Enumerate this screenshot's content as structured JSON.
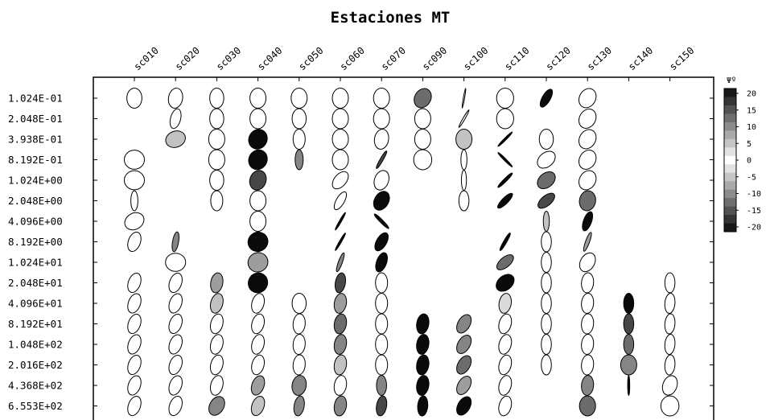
{
  "chart_data": {
    "type": "scatter",
    "title": "Estaciones MT",
    "xlabel": "",
    "ylabel": "",
    "stations": [
      "sc010",
      "sc020",
      "sc030",
      "sc040",
      "sc050",
      "sc060",
      "sc070",
      "sc090",
      "sc100",
      "sc110",
      "sc120",
      "sc130",
      "sc140",
      "sc150"
    ],
    "periods": [
      "1.024E-01",
      "2.048E-01",
      "3.938E-01",
      "8.192E-01",
      "1.024E+00",
      "2.048E+00",
      "4.096E+00",
      "8.192E+00",
      "1.024E+01",
      "2.048E+01",
      "4.096E+01",
      "8.192E+01",
      "1.048E+02",
      "2.016E+02",
      "4.368E+02",
      "6.553E+02"
    ],
    "legend": {
      "title": "Ψº",
      "ticks": [
        "20",
        "15",
        "10",
        "5",
        "0",
        "-5",
        "-10",
        "-15",
        "-20"
      ],
      "range": [
        -20,
        20
      ]
    },
    "ellipse_fields": [
      "station",
      "period_index",
      "skew",
      "axis_ratio",
      "angle_deg"
    ],
    "ellipses": [
      [
        "sc010",
        0,
        0,
        0.75,
        90
      ],
      [
        "sc010",
        3,
        0,
        0.95,
        0
      ],
      [
        "sc010",
        4,
        0,
        0.95,
        0
      ],
      [
        "sc010",
        5,
        0,
        0.35,
        90
      ],
      [
        "sc010",
        6,
        0,
        0.8,
        30
      ],
      [
        "sc010",
        7,
        0,
        0.6,
        70
      ],
      [
        "sc010",
        9,
        0,
        0.6,
        70
      ],
      [
        "sc010",
        10,
        0,
        0.6,
        70
      ],
      [
        "sc010",
        11,
        0,
        0.6,
        70
      ],
      [
        "sc010",
        12,
        0,
        0.6,
        70
      ],
      [
        "sc010",
        13,
        0,
        0.6,
        70
      ],
      [
        "sc010",
        14,
        0,
        0.6,
        70
      ],
      [
        "sc010",
        15,
        0,
        0.6,
        70
      ],
      [
        "sc020",
        0,
        0,
        0.7,
        80
      ],
      [
        "sc020",
        1,
        0,
        0.5,
        75
      ],
      [
        "sc020",
        2,
        5,
        0.8,
        20
      ],
      [
        "sc020",
        7,
        -10,
        0.3,
        80
      ],
      [
        "sc020",
        8,
        0,
        0.9,
        0
      ],
      [
        "sc020",
        9,
        0,
        0.6,
        70
      ],
      [
        "sc020",
        10,
        0,
        0.6,
        70
      ],
      [
        "sc020",
        11,
        0,
        0.6,
        70
      ],
      [
        "sc020",
        12,
        0,
        0.6,
        70
      ],
      [
        "sc020",
        13,
        0,
        0.6,
        70
      ],
      [
        "sc020",
        14,
        0,
        0.6,
        70
      ],
      [
        "sc020",
        15,
        0,
        0.6,
        70
      ],
      [
        "sc030",
        0,
        0,
        0.7,
        90
      ],
      [
        "sc030",
        1,
        0,
        0.7,
        90
      ],
      [
        "sc030",
        2,
        0,
        0.8,
        90
      ],
      [
        "sc030",
        3,
        0,
        0.8,
        90
      ],
      [
        "sc030",
        4,
        0,
        0.7,
        90
      ],
      [
        "sc030",
        5,
        0,
        0.6,
        90
      ],
      [
        "sc030",
        9,
        -8,
        0.6,
        80
      ],
      [
        "sc030",
        10,
        5,
        0.6,
        75
      ],
      [
        "sc030",
        11,
        0,
        0.6,
        75
      ],
      [
        "sc030",
        12,
        0,
        0.6,
        75
      ],
      [
        "sc030",
        13,
        0,
        0.6,
        75
      ],
      [
        "sc030",
        14,
        0,
        0.6,
        75
      ],
      [
        "sc030",
        15,
        -10,
        0.7,
        60
      ],
      [
        "sc040",
        0,
        0,
        0.8,
        90
      ],
      [
        "sc040",
        1,
        0,
        0.8,
        90
      ],
      [
        "sc040",
        2,
        -20,
        0.9,
        60
      ],
      [
        "sc040",
        3,
        -20,
        0.9,
        60
      ],
      [
        "sc040",
        4,
        -15,
        0.8,
        70
      ],
      [
        "sc040",
        5,
        0,
        0.8,
        90
      ],
      [
        "sc040",
        6,
        0,
        0.8,
        90
      ],
      [
        "sc040",
        7,
        -20,
        0.95,
        30
      ],
      [
        "sc040",
        8,
        -8,
        0.95,
        30
      ],
      [
        "sc040",
        9,
        -20,
        0.95,
        60
      ],
      [
        "sc040",
        10,
        0,
        0.6,
        75
      ],
      [
        "sc040",
        11,
        0,
        0.6,
        75
      ],
      [
        "sc040",
        12,
        0,
        0.6,
        75
      ],
      [
        "sc040",
        13,
        0,
        0.6,
        75
      ],
      [
        "sc040",
        14,
        -8,
        0.6,
        70
      ],
      [
        "sc040",
        15,
        5,
        0.6,
        70
      ],
      [
        "sc050",
        0,
        0,
        0.8,
        90
      ],
      [
        "sc050",
        1,
        0,
        0.7,
        90
      ],
      [
        "sc050",
        2,
        0,
        0.6,
        90
      ],
      [
        "sc050",
        3,
        -10,
        0.4,
        90
      ],
      [
        "sc050",
        10,
        0,
        0.7,
        90
      ],
      [
        "sc050",
        11,
        0,
        0.6,
        85
      ],
      [
        "sc050",
        12,
        0,
        0.6,
        85
      ],
      [
        "sc050",
        13,
        0,
        0.6,
        85
      ],
      [
        "sc050",
        14,
        -10,
        0.7,
        80
      ],
      [
        "sc050",
        15,
        -10,
        0.5,
        80
      ],
      [
        "sc060",
        0,
        0,
        0.8,
        90
      ],
      [
        "sc060",
        1,
        0,
        0.8,
        90
      ],
      [
        "sc060",
        2,
        0,
        0.8,
        90
      ],
      [
        "sc060",
        3,
        0,
        0.8,
        90
      ],
      [
        "sc060",
        4,
        0,
        0.6,
        50
      ],
      [
        "sc060",
        5,
        0,
        0.4,
        60
      ],
      [
        "sc060",
        6,
        -20,
        0.1,
        60
      ],
      [
        "sc060",
        7,
        -20,
        0.1,
        60
      ],
      [
        "sc060",
        8,
        -10,
        0.2,
        70
      ],
      [
        "sc060",
        9,
        -15,
        0.5,
        80
      ],
      [
        "sc060",
        10,
        -8,
        0.6,
        80
      ],
      [
        "sc060",
        11,
        -12,
        0.6,
        80
      ],
      [
        "sc060",
        12,
        -10,
        0.6,
        80
      ],
      [
        "sc060",
        13,
        -5,
        0.6,
        80
      ],
      [
        "sc060",
        14,
        0,
        0.6,
        80
      ],
      [
        "sc060",
        15,
        -10,
        0.6,
        80
      ],
      [
        "sc070",
        0,
        0,
        0.8,
        90
      ],
      [
        "sc070",
        1,
        0,
        0.8,
        90
      ],
      [
        "sc070",
        2,
        0,
        0.7,
        80
      ],
      [
        "sc070",
        3,
        -15,
        0.15,
        60
      ],
      [
        "sc070",
        4,
        0,
        0.7,
        70
      ],
      [
        "sc070",
        5,
        -20,
        0.7,
        60
      ],
      [
        "sc070",
        6,
        -20,
        0.15,
        135
      ],
      [
        "sc070",
        7,
        -20,
        0.5,
        60
      ],
      [
        "sc070",
        8,
        -20,
        0.5,
        70
      ],
      [
        "sc070",
        9,
        0,
        0.6,
        90
      ],
      [
        "sc070",
        10,
        0,
        0.6,
        90
      ],
      [
        "sc070",
        11,
        0,
        0.6,
        90
      ],
      [
        "sc070",
        12,
        0,
        0.6,
        90
      ],
      [
        "sc070",
        13,
        0,
        0.6,
        90
      ],
      [
        "sc070",
        14,
        -10,
        0.5,
        90
      ],
      [
        "sc070",
        15,
        -15,
        0.5,
        80
      ],
      [
        "sc090",
        0,
        -12,
        0.8,
        60
      ],
      [
        "sc090",
        1,
        0,
        0.8,
        90
      ],
      [
        "sc090",
        2,
        0,
        0.8,
        90
      ],
      [
        "sc090",
        3,
        0,
        0.9,
        90
      ],
      [
        "sc090",
        11,
        -20,
        0.6,
        80
      ],
      [
        "sc090",
        12,
        -20,
        0.6,
        80
      ],
      [
        "sc090",
        13,
        -20,
        0.6,
        80
      ],
      [
        "sc090",
        14,
        -20,
        0.6,
        80
      ],
      [
        "sc090",
        15,
        -20,
        0.5,
        85
      ],
      [
        "sc100",
        0,
        0,
        0.05,
        80
      ],
      [
        "sc100",
        1,
        0,
        0.1,
        60
      ],
      [
        "sc100",
        2,
        5,
        0.8,
        90
      ],
      [
        "sc100",
        3,
        0,
        0.3,
        90
      ],
      [
        "sc100",
        4,
        0,
        0.25,
        90
      ],
      [
        "sc100",
        5,
        0,
        0.5,
        90
      ],
      [
        "sc100",
        11,
        -10,
        0.6,
        60
      ],
      [
        "sc100",
        12,
        -10,
        0.6,
        60
      ],
      [
        "sc100",
        13,
        -12,
        0.6,
        60
      ],
      [
        "sc100",
        14,
        -8,
        0.6,
        60
      ],
      [
        "sc100",
        15,
        -20,
        0.6,
        60
      ],
      [
        "sc110",
        0,
        0,
        0.85,
        90
      ],
      [
        "sc110",
        1,
        0,
        0.85,
        90
      ],
      [
        "sc110",
        2,
        -20,
        0.1,
        45
      ],
      [
        "sc110",
        3,
        -20,
        0.1,
        135
      ],
      [
        "sc110",
        4,
        -20,
        0.15,
        45
      ],
      [
        "sc110",
        5,
        -20,
        0.3,
        45
      ],
      [
        "sc110",
        6,
        0,
        0.0,
        0
      ],
      [
        "sc110",
        7,
        -20,
        0.15,
        60
      ],
      [
        "sc110",
        8,
        -12,
        0.5,
        40
      ],
      [
        "sc110",
        9,
        -20,
        0.7,
        40
      ],
      [
        "sc110",
        10,
        3,
        0.6,
        80
      ],
      [
        "sc110",
        11,
        0,
        0.6,
        75
      ],
      [
        "sc110",
        12,
        0,
        0.6,
        75
      ],
      [
        "sc110",
        13,
        0,
        0.6,
        75
      ],
      [
        "sc110",
        14,
        0,
        0.6,
        75
      ],
      [
        "sc110",
        15,
        0,
        0.6,
        75
      ],
      [
        "sc120",
        0,
        -20,
        0.4,
        60
      ],
      [
        "sc120",
        2,
        0,
        0.7,
        90
      ],
      [
        "sc120",
        3,
        0,
        0.7,
        40
      ],
      [
        "sc120",
        4,
        -12,
        0.7,
        40
      ],
      [
        "sc120",
        5,
        -15,
        0.5,
        40
      ],
      [
        "sc120",
        6,
        -5,
        0.3,
        90
      ],
      [
        "sc120",
        7,
        0,
        0.5,
        90
      ],
      [
        "sc120",
        8,
        0,
        0.5,
        90
      ],
      [
        "sc120",
        9,
        0,
        0.5,
        90
      ],
      [
        "sc120",
        10,
        0,
        0.5,
        90
      ],
      [
        "sc120",
        11,
        0,
        0.5,
        90
      ],
      [
        "sc120",
        12,
        0,
        0.5,
        90
      ],
      [
        "sc120",
        13,
        0,
        0.5,
        90
      ],
      [
        "sc130",
        0,
        0,
        0.8,
        60
      ],
      [
        "sc130",
        1,
        0,
        0.8,
        60
      ],
      [
        "sc130",
        2,
        0,
        0.8,
        60
      ],
      [
        "sc130",
        3,
        0,
        0.8,
        60
      ],
      [
        "sc130",
        4,
        0,
        0.8,
        60
      ],
      [
        "sc130",
        5,
        -12,
        0.8,
        80
      ],
      [
        "sc130",
        6,
        -20,
        0.4,
        70
      ],
      [
        "sc130",
        7,
        -8,
        0.2,
        70
      ],
      [
        "sc130",
        8,
        0,
        0.7,
        60
      ],
      [
        "sc130",
        9,
        0,
        0.6,
        85
      ],
      [
        "sc130",
        10,
        0,
        0.6,
        85
      ],
      [
        "sc130",
        11,
        0,
        0.6,
        85
      ],
      [
        "sc130",
        12,
        0,
        0.6,
        85
      ],
      [
        "sc130",
        13,
        0,
        0.6,
        85
      ],
      [
        "sc130",
        14,
        -10,
        0.6,
        85
      ],
      [
        "sc130",
        15,
        -12,
        0.8,
        90
      ],
      [
        "sc140",
        10,
        -20,
        0.5,
        90
      ],
      [
        "sc140",
        11,
        -15,
        0.5,
        90
      ],
      [
        "sc140",
        12,
        -12,
        0.5,
        90
      ],
      [
        "sc140",
        13,
        -10,
        0.8,
        90
      ],
      [
        "sc140",
        14,
        -20,
        0.1,
        90
      ],
      [
        "sc150",
        9,
        0,
        0.5,
        90
      ],
      [
        "sc150",
        10,
        0,
        0.5,
        85
      ],
      [
        "sc150",
        11,
        0,
        0.5,
        85
      ],
      [
        "sc150",
        12,
        0,
        0.5,
        85
      ],
      [
        "sc150",
        13,
        0,
        0.5,
        85
      ],
      [
        "sc150",
        14,
        0,
        0.7,
        70
      ],
      [
        "sc150",
        15,
        0,
        0.9,
        90
      ]
    ]
  }
}
